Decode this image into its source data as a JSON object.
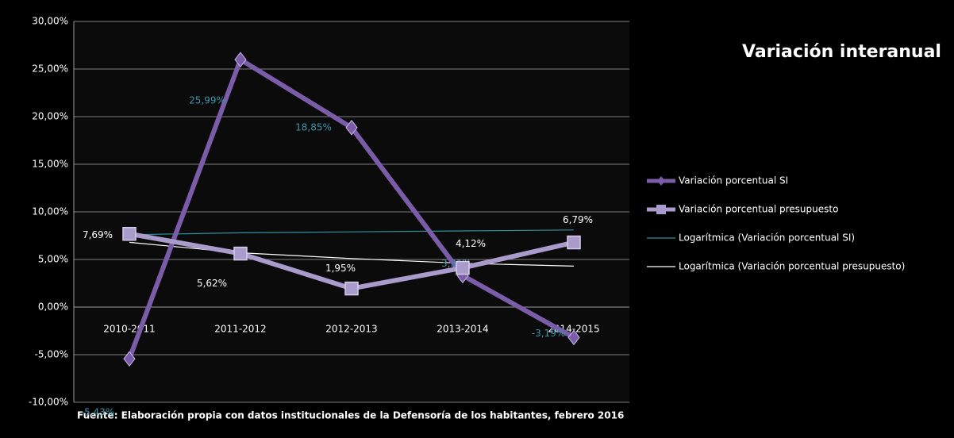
{
  "chart_data": {
    "type": "line",
    "title": "Variación interanual",
    "note": "Fuente: Elaboración  propia con datos institucionales  de la Defensoría  de los habitantes,  febrero 2016",
    "categories": [
      "2010-2011",
      "2011-2012",
      "2012-2013",
      "2013-2014",
      "2014-2015"
    ],
    "ylim": [
      -10,
      30
    ],
    "yticks": [
      {
        "value": -10,
        "label": "-10,00%"
      },
      {
        "value": -5,
        "label": "-5,00%"
      },
      {
        "value": 0,
        "label": "0,00%"
      },
      {
        "value": 5,
        "label": "5,00%"
      },
      {
        "value": 10,
        "label": "10,00%"
      },
      {
        "value": 15,
        "label": "15,00%"
      },
      {
        "value": 20,
        "label": "20,00%"
      },
      {
        "value": 25,
        "label": "25,00%"
      },
      {
        "value": 30,
        "label": "30,00%"
      }
    ],
    "grid": true,
    "legend": "right",
    "series": [
      {
        "name": "Variación porcentual SI",
        "color": "#7a5ca8",
        "marker": "diamond",
        "values": [
          -5.43,
          25.99,
          18.85,
          3.31,
          -3.19
        ],
        "value_labels": [
          "-5,43%",
          "25,99%",
          "18,85%",
          "3,31%",
          "-3,19%"
        ],
        "label_color": "#3f93ad"
      },
      {
        "name": "Variación porcentual presupuesto",
        "color": "#a99bcb",
        "marker": "square",
        "values": [
          7.69,
          5.62,
          1.95,
          4.12,
          6.79
        ],
        "value_labels": [
          "7,69%",
          "5,62%",
          "1,95%",
          "4,12%",
          "6,79%"
        ],
        "label_color": "#ffffff"
      },
      {
        "name": "Logarítmica (Variación porcentual SI)",
        "color": "#2f8f9d",
        "values": [
          7.6,
          7.8,
          7.9,
          8.0,
          8.1
        ]
      },
      {
        "name": "Logarítmica (Variación porcentual presupuesto)",
        "color": "#ffffff",
        "values": [
          6.8,
          5.7,
          5.1,
          4.6,
          4.3
        ]
      }
    ]
  }
}
